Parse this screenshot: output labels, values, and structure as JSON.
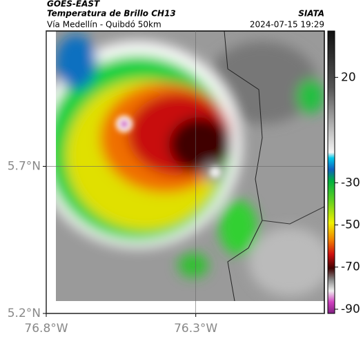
{
  "header": {
    "title": "GOES-EAST",
    "subtitle": "Temperatura de Brillo CH13",
    "region": "Vía Medellín - Quibdó 50km",
    "source": "SIATA",
    "datetime": "2024-07-15 19:29"
  },
  "map": {
    "xlim": [
      -76.8,
      -75.87
    ],
    "ylim": [
      5.2,
      6.16
    ],
    "xticks": [
      {
        "value": -76.8,
        "label": "76.8°W"
      },
      {
        "value": -76.3,
        "label": "76.3°W"
      }
    ],
    "yticks": [
      {
        "value": 5.2,
        "label": "5.2°N"
      },
      {
        "value": 5.7,
        "label": "5.7°N"
      }
    ],
    "grid": true
  },
  "colorbar": {
    "lim": [
      -92,
      42
    ],
    "ticks": [
      20,
      -30,
      -50,
      -70,
      -90
    ]
  }
}
